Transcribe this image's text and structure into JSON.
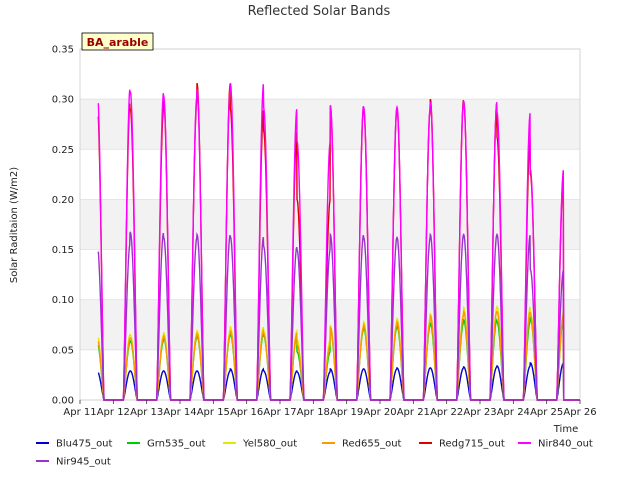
{
  "chart_data": {
    "type": "line",
    "title": "Reflected Solar Bands",
    "xlabel": "Time",
    "ylabel": "Solar Raditaion (W/m2)",
    "badge": "BA_arable",
    "xlim": [
      "Apr 11",
      "Apr 26"
    ],
    "ylim": [
      0.0,
      0.35
    ],
    "yticks": [
      "0.00",
      "0.05",
      "0.10",
      "0.15",
      "0.20",
      "0.25",
      "0.30",
      "0.35"
    ],
    "xticks": [
      "Apr 11",
      "Apr 12",
      "Apr 13",
      "Apr 14",
      "Apr 15",
      "Apr 16",
      "Apr 17",
      "Apr 18",
      "Apr 19",
      "Apr 20",
      "Apr 21",
      "Apr 22",
      "Apr 23",
      "Apr 24",
      "Apr 25",
      "Apr 26"
    ],
    "grid": true,
    "background_bands": true,
    "legend_position": "bottom",
    "days": [
      "Apr 12",
      "Apr 13",
      "Apr 14",
      "Apr 15",
      "Apr 16",
      "Apr 17",
      "Apr 18",
      "Apr 19",
      "Apr 20",
      "Apr 21",
      "Apr 22",
      "Apr 23",
      "Apr 24",
      "Apr 25"
    ],
    "series": [
      {
        "name": "Blu475_out",
        "color": "#0000cc",
        "daily_peak": [
          0.029,
          0.029,
          0.029,
          0.029,
          0.031,
          0.029,
          0.028,
          0.031,
          0.031,
          0.032,
          0.032,
          0.033,
          0.034,
          0.037
        ]
      },
      {
        "name": "Grn535_out",
        "color": "#00cc00",
        "daily_peak": [
          0.058,
          0.059,
          0.062,
          0.064,
          0.066,
          0.064,
          0.048,
          0.07,
          0.072,
          0.074,
          0.077,
          0.08,
          0.078,
          0.082
        ]
      },
      {
        "name": "Yel580_out",
        "color": "#e6e600",
        "daily_peak": [
          0.066,
          0.065,
          0.067,
          0.069,
          0.073,
          0.069,
          0.06,
          0.074,
          0.078,
          0.081,
          0.086,
          0.092,
          0.093,
          0.088
        ]
      },
      {
        "name": "Red655_out",
        "color": "#ff9900",
        "daily_peak": [
          0.062,
          0.062,
          0.064,
          0.066,
          0.069,
          0.066,
          0.055,
          0.072,
          0.075,
          0.078,
          0.084,
          0.088,
          0.088,
          0.085
        ]
      },
      {
        "name": "Redg715_out",
        "color": "#dd0000",
        "daily_peak": [
          0.3,
          0.29,
          0.298,
          0.316,
          0.29,
          0.268,
          0.2,
          0.292,
          0.29,
          0.29,
          0.3,
          0.297,
          0.262,
          0.225
        ]
      },
      {
        "name": "Nir840_out",
        "color": "#ff00ff",
        "daily_peak": [
          0.314,
          0.307,
          0.303,
          0.31,
          0.316,
          0.291,
          0.258,
          0.294,
          0.292,
          0.292,
          0.297,
          0.298,
          0.287,
          0.23
        ]
      },
      {
        "name": "Nir945_out",
        "color": "#9933cc",
        "daily_peak": [
          0.157,
          0.167,
          0.162,
          0.165,
          0.163,
          0.153,
          0.15,
          0.165,
          0.162,
          0.162,
          0.165,
          0.165,
          0.165,
          0.13
        ]
      }
    ]
  }
}
